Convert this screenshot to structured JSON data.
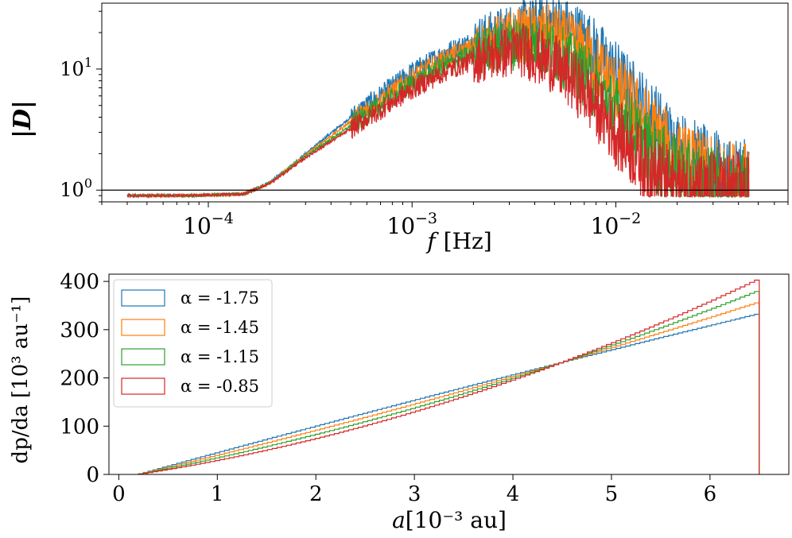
{
  "chart_data": [
    {
      "type": "line",
      "xscale": "log",
      "yscale": "log",
      "xlim": [
        3e-05,
        0.07
      ],
      "ylim": [
        0.8,
        35
      ],
      "xlabel_var": "f",
      "xlabel_unit": "[Hz]",
      "ylabel": "|D|",
      "x_ticks": [
        {
          "value": 0.0001,
          "base": "10",
          "exp": "−4"
        },
        {
          "value": 0.001,
          "base": "10",
          "exp": "−3"
        },
        {
          "value": 0.01,
          "base": "10",
          "exp": "−2"
        }
      ],
      "y_ticks": [
        {
          "value": 1,
          "base": "10",
          "exp": "0"
        },
        {
          "value": 10,
          "base": "10",
          "exp": "1"
        }
      ],
      "hline": 1,
      "x_range": [
        4e-05,
        0.045
      ],
      "series": [
        {
          "color": "#1f77b4",
          "profile": [
            [
              4e-05,
              0.9
            ],
            [
              8e-05,
              0.9
            ],
            [
              0.00015,
              0.93
            ],
            [
              0.0002,
              1.15
            ],
            [
              0.0003,
              2.0
            ],
            [
              0.0005,
              4.0
            ],
            [
              0.001,
              9.5
            ],
            [
              0.0015,
              14
            ],
            [
              0.002,
              17
            ],
            [
              0.003,
              21
            ],
            [
              0.004,
              23
            ],
            [
              0.005,
              24
            ],
            [
              0.007,
              18
            ],
            [
              0.01,
              9
            ],
            [
              0.015,
              4
            ],
            [
              0.02,
              2.2
            ],
            [
              0.03,
              1.4
            ],
            [
              0.045,
              1.2
            ]
          ]
        },
        {
          "color": "#ff7f0e",
          "profile": [
            [
              4e-05,
              0.9
            ],
            [
              8e-05,
              0.9
            ],
            [
              0.00015,
              0.93
            ],
            [
              0.0002,
              1.15
            ],
            [
              0.0003,
              1.95
            ],
            [
              0.0005,
              3.7
            ],
            [
              0.001,
              8.5
            ],
            [
              0.0015,
              12.5
            ],
            [
              0.002,
              15
            ],
            [
              0.003,
              18.5
            ],
            [
              0.004,
              20
            ],
            [
              0.005,
              19
            ],
            [
              0.007,
              14
            ],
            [
              0.01,
              7
            ],
            [
              0.015,
              3.2
            ],
            [
              0.02,
              1.8
            ],
            [
              0.03,
              1.2
            ],
            [
              0.045,
              1.05
            ]
          ]
        },
        {
          "color": "#2ca02c",
          "profile": [
            [
              4e-05,
              0.9
            ],
            [
              8e-05,
              0.9
            ],
            [
              0.00015,
              0.93
            ],
            [
              0.0002,
              1.14
            ],
            [
              0.0003,
              1.9
            ],
            [
              0.0005,
              3.4
            ],
            [
              0.001,
              7.5
            ],
            [
              0.0015,
              11
            ],
            [
              0.002,
              13.3
            ],
            [
              0.003,
              16
            ],
            [
              0.0035,
              16.8
            ],
            [
              0.005,
              14
            ],
            [
              0.007,
              9
            ],
            [
              0.01,
              4.5
            ],
            [
              0.015,
              2.0
            ],
            [
              0.02,
              1.3
            ],
            [
              0.03,
              1.0
            ],
            [
              0.045,
              0.95
            ]
          ]
        },
        {
          "color": "#d62728",
          "profile": [
            [
              4e-05,
              0.9
            ],
            [
              8e-05,
              0.9
            ],
            [
              0.00015,
              0.93
            ],
            [
              0.0002,
              1.13
            ],
            [
              0.0003,
              1.85
            ],
            [
              0.0005,
              3.2
            ],
            [
              0.001,
              6.8
            ],
            [
              0.0015,
              9.8
            ],
            [
              0.002,
              11.8
            ],
            [
              0.003,
              14
            ],
            [
              0.0035,
              14.4
            ],
            [
              0.005,
              11
            ],
            [
              0.007,
              6.5
            ],
            [
              0.01,
              3.0
            ],
            [
              0.015,
              1.4
            ],
            [
              0.02,
              1.0
            ],
            [
              0.03,
              0.92
            ],
            [
              0.045,
              0.9
            ]
          ]
        }
      ]
    },
    {
      "type": "step",
      "xlim": [
        -0.1,
        6.8
      ],
      "ylim": [
        0,
        415
      ],
      "xlabel_var": "a",
      "xlabel_unit": "[10⁻³ au]",
      "ylabel": "dp/da [10³ au⁻¹]",
      "x_ticks": [
        "0",
        "1",
        "2",
        "3",
        "4",
        "5",
        "6"
      ],
      "y_ticks": [
        "0",
        "100",
        "200",
        "300",
        "400"
      ],
      "x_range": [
        0.2,
        6.5
      ],
      "cross_point": [
        4.5,
        232
      ],
      "series": [
        {
          "name": "α = -1.75",
          "color": "#1f77b4",
          "end_value": 333
        },
        {
          "name": "α = -1.45",
          "color": "#ff7f0e",
          "end_value": 357
        },
        {
          "name": "α = -1.15",
          "color": "#2ca02c",
          "end_value": 381
        },
        {
          "name": "α = -0.85",
          "color": "#d62728",
          "end_value": 405
        }
      ],
      "legend": "top-left"
    }
  ]
}
